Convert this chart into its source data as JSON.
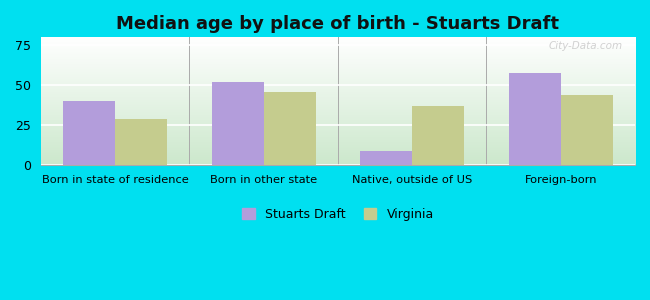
{
  "title": "Median age by place of birth - Stuarts Draft",
  "categories": [
    "Born in state of residence",
    "Born in other state",
    "Native, outside of US",
    "Foreign-born"
  ],
  "stuarts_draft": [
    40,
    52,
    9,
    58
  ],
  "virginia": [
    29,
    46,
    37,
    44
  ],
  "color_stuarts": "#b39ddb",
  "color_virginia": "#c5cc8e",
  "ylim": [
    0,
    80
  ],
  "yticks": [
    0,
    25,
    50,
    75
  ],
  "background_outer": "#00e0f0",
  "background_plot_top": "#cce8cc",
  "background_plot_bottom": "#ffffff",
  "legend_stuarts": "Stuarts Draft",
  "legend_virginia": "Virginia",
  "bar_width": 0.35,
  "watermark": "City-Data.com"
}
